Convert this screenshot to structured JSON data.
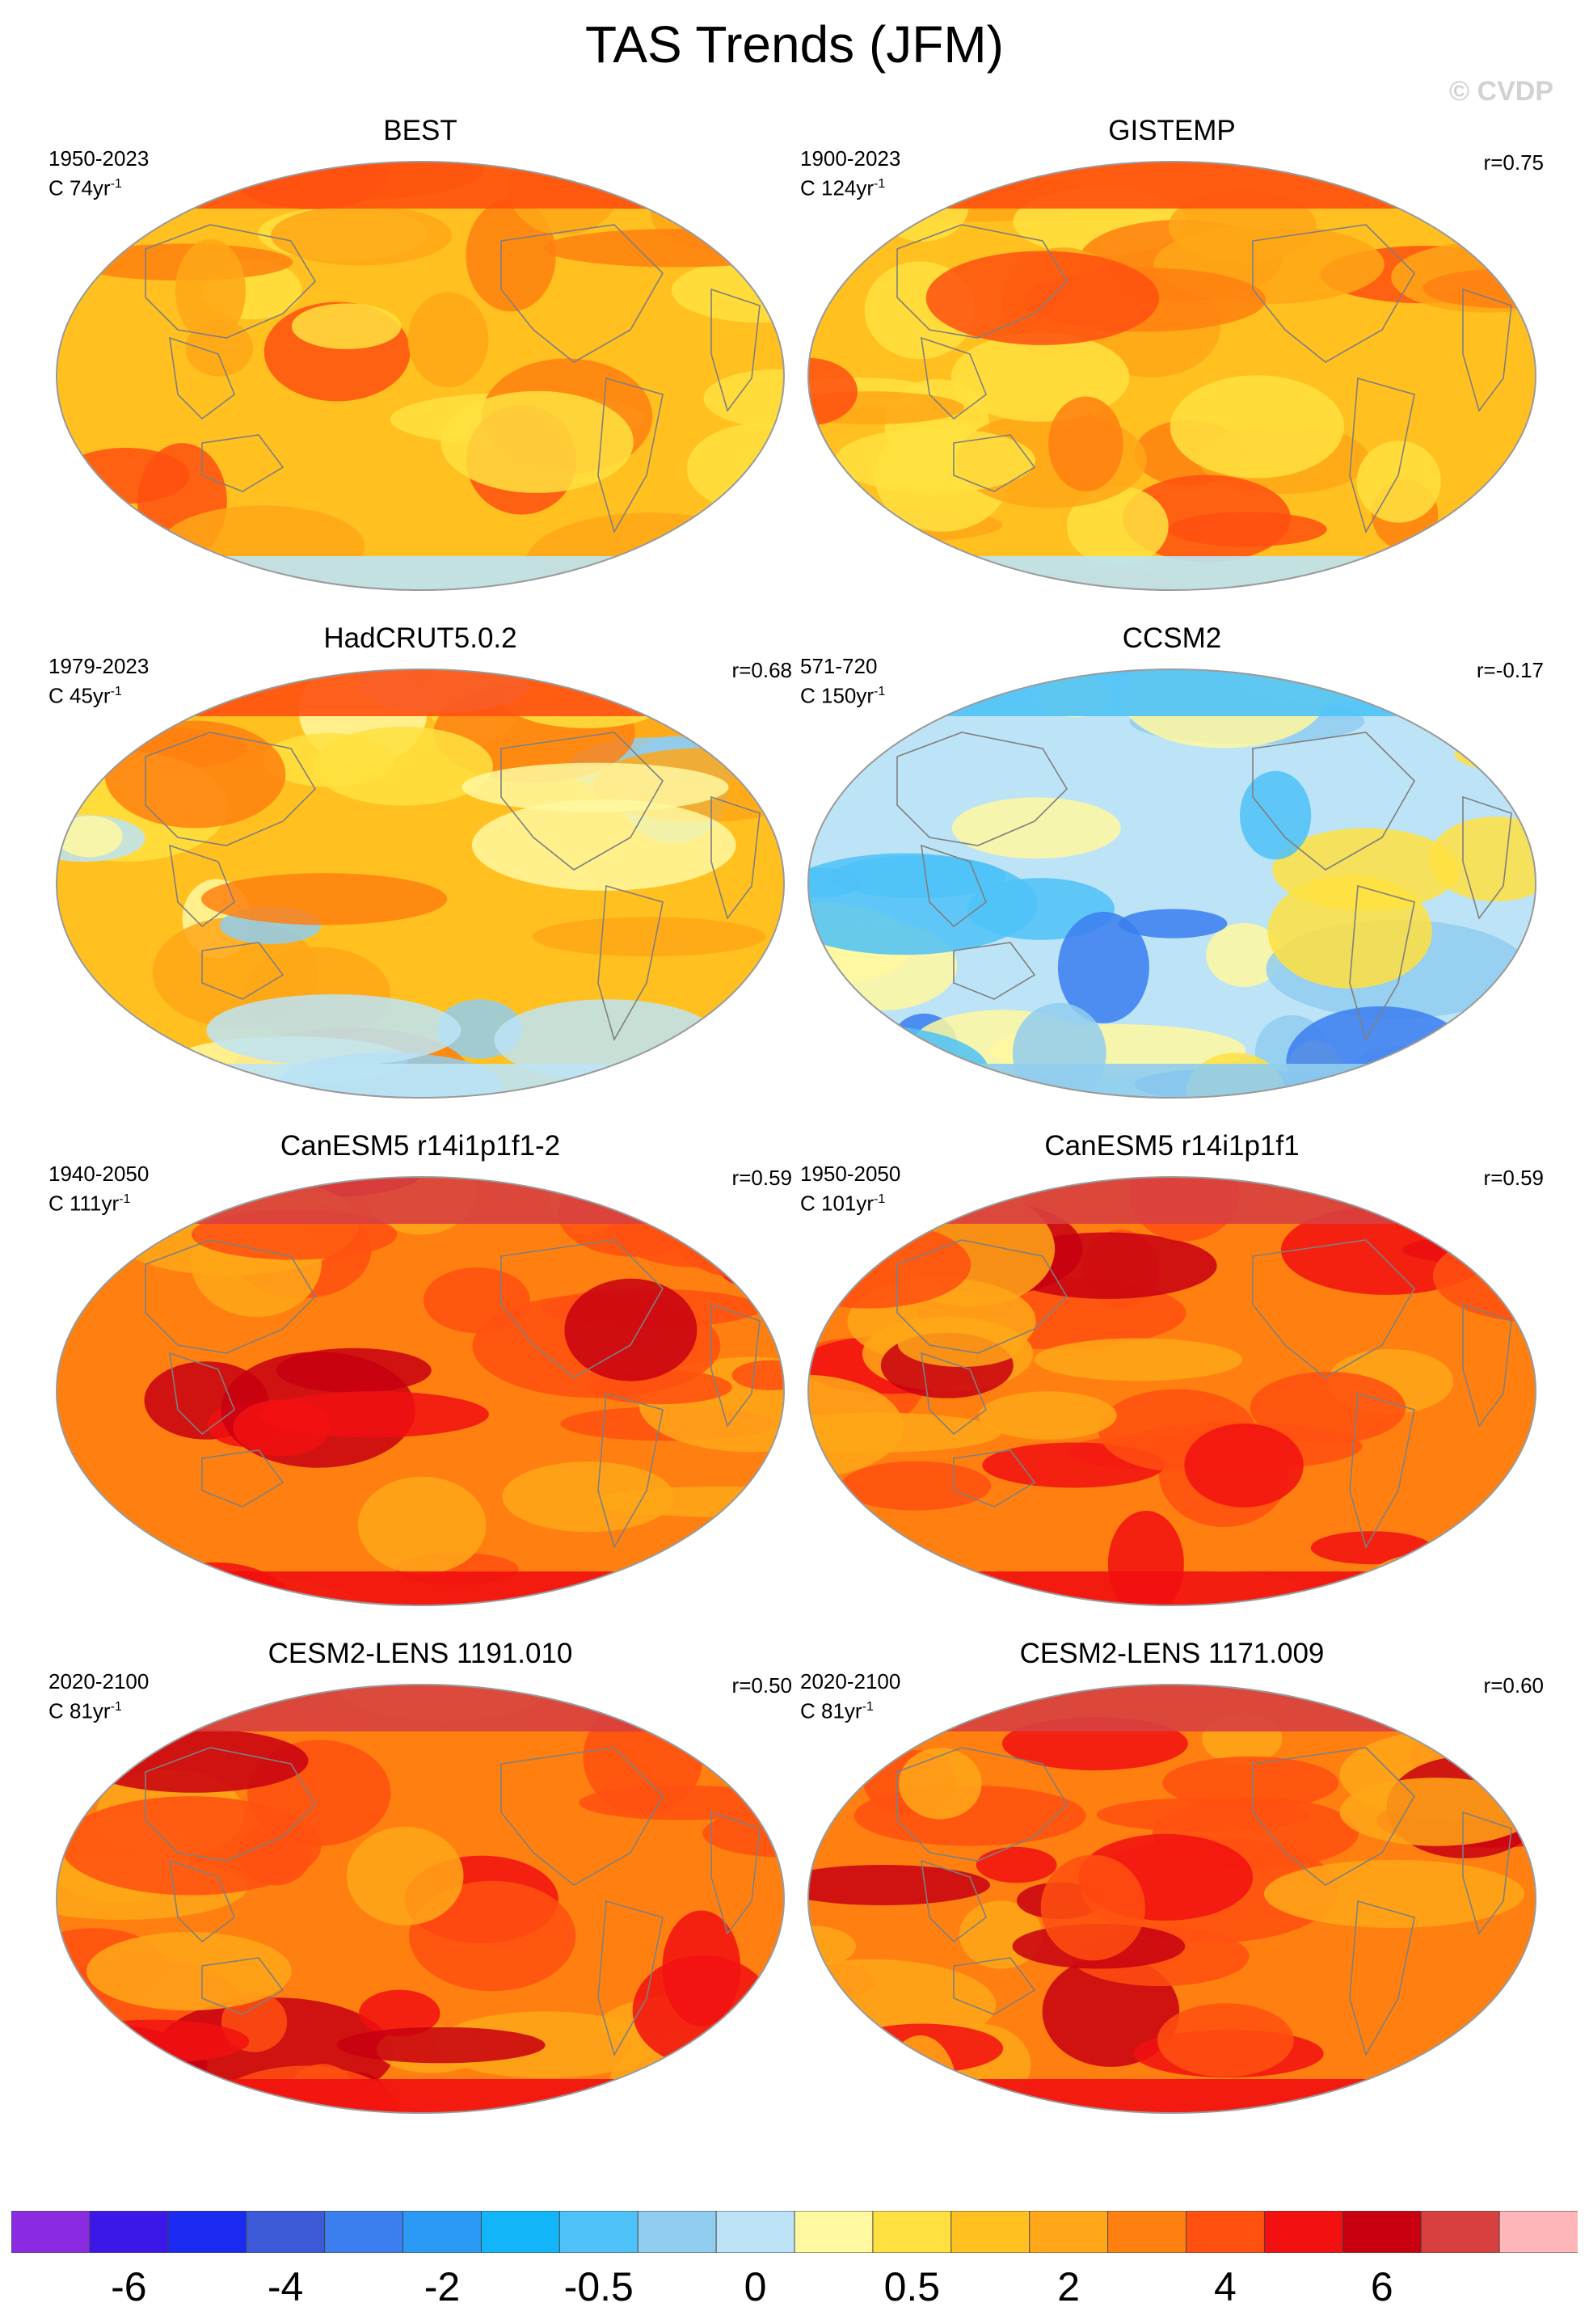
{
  "figure": {
    "title": "TAS Trends (JFM)",
    "copyright": "© CVDP"
  },
  "panels": [
    {
      "title": "BEST",
      "period": "1950-2023",
      "units": "C 74yr",
      "corr": "",
      "palette": "warm"
    },
    {
      "title": "GISTEMP",
      "period": "1900-2023",
      "units": "C 124yr",
      "corr": "r=0.75",
      "palette": "warm"
    },
    {
      "title": "HadCRUT5.0.2",
      "period": "1979-2023",
      "units": "C 45yr",
      "corr": "r=0.68",
      "palette": "warm_cool"
    },
    {
      "title": "CCSM2",
      "period": "571-720",
      "units": "C 150yr",
      "corr": "r=-0.17",
      "palette": "cool"
    },
    {
      "title": "CanESM5 r14i1p1f1-2",
      "period": "1940-2050",
      "units": "C 111yr",
      "corr": "r=0.59",
      "palette": "hot"
    },
    {
      "title": "CanESM5 r14i1p1f1",
      "period": "1950-2050",
      "units": "C 101yr",
      "corr": "r=0.59",
      "palette": "hot"
    },
    {
      "title": "CESM2-LENS 1191.010",
      "period": "2020-2100",
      "units": "C 81yr",
      "corr": "r=0.50",
      "palette": "hot"
    },
    {
      "title": "CESM2-LENS 1171.009",
      "period": "2020-2100",
      "units": "C 81yr",
      "corr": "r=0.60",
      "palette": "hot"
    }
  ],
  "units_exponent": "-1",
  "colorbar": {
    "colors": [
      "#8a2be2",
      "#3b18e8",
      "#1a2af0",
      "#3c5ad8",
      "#3a7ef0",
      "#2a9af5",
      "#12b6f8",
      "#4ec2f8",
      "#90cdee",
      "#bde4f6",
      "#fff8a0",
      "#ffe040",
      "#ffc020",
      "#ffa718",
      "#ff8010",
      "#ff5010",
      "#f21010",
      "#c80010",
      "#d84040",
      "#ffb6b8"
    ],
    "tick_labels": [
      "-6",
      "-4",
      "-2",
      "-0.5",
      "0",
      "0.5",
      "2",
      "4",
      "6"
    ],
    "tick_boundaries": [
      2,
      4,
      6,
      8,
      10,
      12,
      14,
      16,
      18
    ]
  }
}
